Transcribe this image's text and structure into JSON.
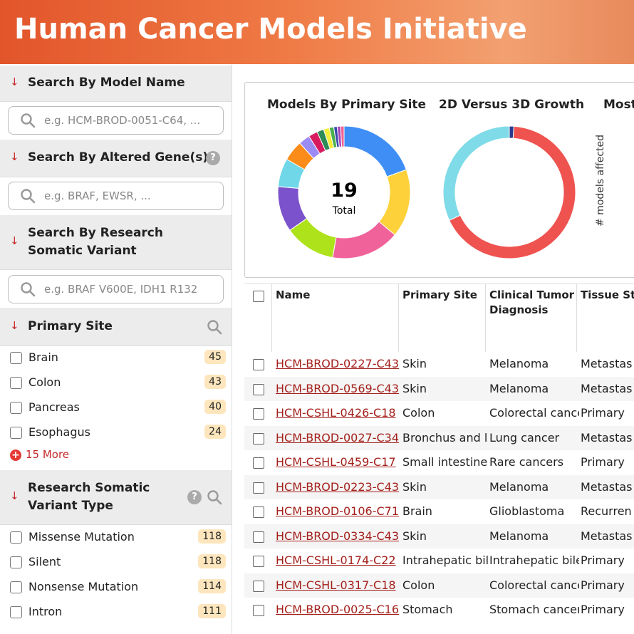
{
  "header": {
    "title": "Human Cancer Models Initiative"
  },
  "sidebar": {
    "model_search": {
      "title": "Search By Model Name",
      "placeholder": "e.g. HCM-BROD-0051-C64, ..."
    },
    "gene_search": {
      "title": "Search By Altered Gene(s)",
      "help": "?",
      "placeholder": "e.g. BRAF, EWSR, ..."
    },
    "variant_search": {
      "title": "Search By Research Somatic Variant",
      "placeholder": "e.g. BRAF V600E, IDH1 R132"
    },
    "primary_site": {
      "title": "Primary Site",
      "items": [
        {
          "label": "Brain",
          "count": "45"
        },
        {
          "label": "Colon",
          "count": "43"
        },
        {
          "label": "Pancreas",
          "count": "40"
        },
        {
          "label": "Esophagus",
          "count": "24"
        }
      ],
      "more": "15 More"
    },
    "variant_type": {
      "title": "Research Somatic Variant Type",
      "help": "?",
      "items": [
        {
          "label": "Missense Mutation",
          "count": "118"
        },
        {
          "label": "Silent",
          "count": "118"
        },
        {
          "label": "Nonsense Mutation",
          "count": "114"
        },
        {
          "label": "Intron",
          "count": "111"
        }
      ]
    }
  },
  "chart_data": [
    {
      "type": "pie",
      "title": "Models By Primary Site",
      "center_value": "19",
      "center_label": "Total",
      "values": [
        70,
        60,
        60,
        45,
        40,
        25,
        18,
        10,
        8,
        6,
        5,
        4,
        3,
        3,
        3
      ],
      "colors": [
        "#3f8ef5",
        "#fdd13a",
        "#f0629a",
        "#aee21b",
        "#7c52cc",
        "#6fd7e8",
        "#fb8c1a",
        "#9b8cf5",
        "#d81b60",
        "#2e8b57",
        "#f4ee3c",
        "#4caf50",
        "#3949ab",
        "#ab47bc",
        "#f06292"
      ]
    },
    {
      "type": "pie",
      "title": "2D Versus 3D Growth",
      "values": [
        4,
        241,
        115
      ],
      "colors": [
        "#2b3a8f",
        "#ef5350",
        "#7fdbe8"
      ]
    },
    {
      "type": "bar",
      "title": "Most",
      "y_label": "# models affected"
    }
  ],
  "table": {
    "columns": [
      "Name",
      "Primary Site",
      "Clinical Tumor Diagnosis",
      "Tissue St"
    ],
    "rows": [
      [
        "HCM-BROD-0227-C43",
        "Skin",
        "Melanoma",
        "Metastas"
      ],
      [
        "HCM-BROD-0569-C43",
        "Skin",
        "Melanoma",
        "Metastas"
      ],
      [
        "HCM-CSHL-0426-C18",
        "Colon",
        "Colorectal cance",
        "Primary"
      ],
      [
        "HCM-BROD-0027-C34",
        "Bronchus and lu",
        "Lung cancer",
        "Metastas"
      ],
      [
        "HCM-CSHL-0459-C17",
        "Small intestine",
        "Rare cancers",
        "Primary"
      ],
      [
        "HCM-BROD-0223-C43",
        "Skin",
        "Melanoma",
        "Metastas"
      ],
      [
        "HCM-BROD-0106-C71",
        "Brain",
        "Glioblastoma",
        "Recurren"
      ],
      [
        "HCM-BROD-0334-C43",
        "Skin",
        "Melanoma",
        "Metastas"
      ],
      [
        "HCM-CSHL-0174-C22",
        "Intrahepatic bile",
        "Intrahepatic bile",
        "Primary"
      ],
      [
        "HCM-CSHL-0317-C18",
        "Colon",
        "Colorectal cance",
        "Primary"
      ],
      [
        "HCM-BROD-0025-C16",
        "Stomach",
        "Stomach cancer",
        "Primary"
      ]
    ]
  }
}
